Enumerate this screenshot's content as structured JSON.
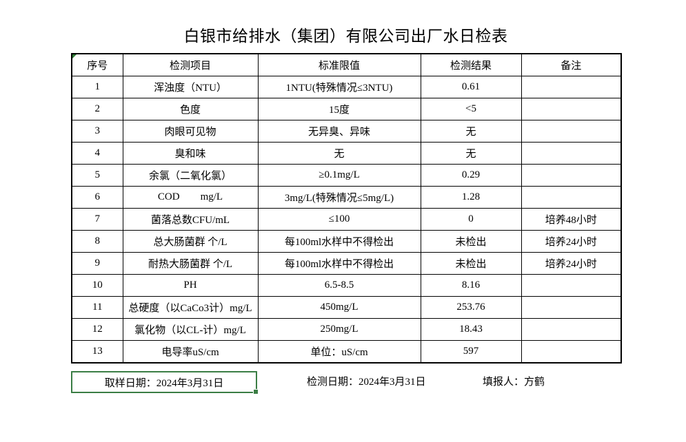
{
  "page": {
    "title": "白银市给排水（集团）有限公司出厂水日检表"
  },
  "colors": {
    "border": "#000000",
    "selection_green": "#3a7d44",
    "error_indicator_green": "#2f7d36",
    "background": "#ffffff"
  },
  "table": {
    "headers": [
      "序号",
      "检测项目",
      "标准限值",
      "检测结果",
      "备注"
    ],
    "rows": [
      {
        "no": "1",
        "item": "浑浊度（NTU）",
        "standard": "1NTU(特殊情况≤3NTU)",
        "result": "0.61",
        "note": ""
      },
      {
        "no": "2",
        "item": "色度",
        "standard": "15度",
        "result": "<5",
        "note": ""
      },
      {
        "no": "3",
        "item": "肉眼可见物",
        "standard": "无异臭、异味",
        "result": "无",
        "note": ""
      },
      {
        "no": "4",
        "item": "臭和味",
        "standard": "无",
        "result": "无",
        "note": ""
      },
      {
        "no": "5",
        "item": "余氯（二氧化氯）",
        "standard": "≥0.1mg/L",
        "result": "0.29",
        "note": ""
      },
      {
        "no": "6",
        "item": "COD        mg/L",
        "standard": "3mg/L(特殊情况≤5mg/L)",
        "result": "1.28",
        "note": ""
      },
      {
        "no": "7",
        "item": "菌落总数CFU/mL",
        "standard": "≤100",
        "result": "0",
        "note": "培养48小时"
      },
      {
        "no": "8",
        "item": "总大肠菌群 个/L",
        "standard": "每100ml水样中不得检出",
        "result": "未检出",
        "note": "培养24小时"
      },
      {
        "no": "9",
        "item": "耐热大肠菌群 个/L",
        "standard": "每100ml水样中不得检出",
        "result": "未检出",
        "note": "培养24小时"
      },
      {
        "no": "10",
        "item": "PH",
        "standard": "6.5-8.5",
        "result": "8.16",
        "note": ""
      },
      {
        "no": "11",
        "item": "总硬度（以CaCo3计）mg/L",
        "standard": "450mg/L",
        "result": "253.76",
        "note": ""
      },
      {
        "no": "12",
        "item": "氯化物（以CL-计）mg/L",
        "standard": "250mg/L",
        "result": "18.43",
        "note": ""
      },
      {
        "no": "13",
        "item": "电导率uS/cm",
        "standard": "单位：uS/cm",
        "result": "597",
        "note": ""
      }
    ]
  },
  "footer": {
    "sampling_date_label": "取样日期：2024年3月31日",
    "test_date_label": "检测日期：2024年3月31日",
    "reporter_label": "填报人：方鹤"
  }
}
